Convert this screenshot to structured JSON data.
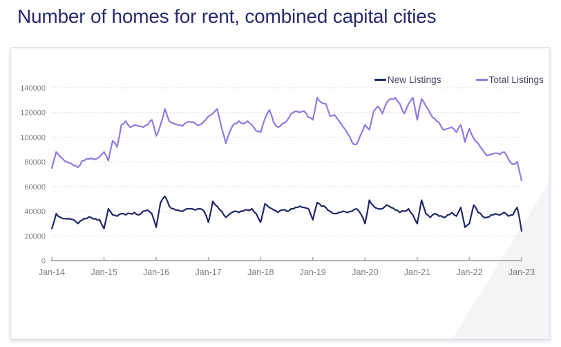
{
  "page": {
    "title": "Number of homes for rent, combined capital cities"
  },
  "colors": {
    "title": "#272b6d",
    "new_listings": "#222668",
    "total_listings": "#8a7ce0",
    "gridline": "#d9d9d9",
    "axis": "#a6a6a6",
    "tick_label": "#7d7d7d",
    "legend_text": "#42465c",
    "card_border": "#e4e5ec",
    "sheen": "#f4f4f7"
  },
  "chart_data": {
    "type": "line",
    "title": "Number of homes for rent, combined capital cities",
    "xlabel": "",
    "ylabel": "",
    "ylim": [
      0,
      140000
    ],
    "y_ticks": [
      0,
      20000,
      40000,
      60000,
      80000,
      100000,
      120000,
      140000
    ],
    "x_tick_labels": [
      "Jan-14",
      "Jan-15",
      "Jan-16",
      "Jan-17",
      "Jan-18",
      "Jan-19",
      "Jan-20",
      "Jan-21",
      "Jan-22",
      "Jan-23"
    ],
    "x_resolution": "monthly, Jan-14 through Jan-23",
    "grid": "horizontal dotted gridlines",
    "legend_position": "top-right",
    "series": [
      {
        "name": "New Listings",
        "color": "#222668",
        "monthly_values": [
          26000,
          38000,
          35000,
          34000,
          34000,
          33000,
          30000,
          33000,
          34000,
          35000,
          34000,
          33000,
          26000,
          42000,
          37000,
          36000,
          38000,
          37000,
          38000,
          39000,
          37000,
          40000,
          41000,
          38000,
          27000,
          47000,
          52000,
          44000,
          42000,
          41000,
          40000,
          42000,
          42000,
          41000,
          42000,
          40000,
          31000,
          48000,
          44000,
          40000,
          35000,
          38000,
          40000,
          39000,
          40000,
          41000,
          42000,
          38000,
          31000,
          46000,
          43000,
          41000,
          39000,
          41000,
          40000,
          42000,
          43000,
          44000,
          43000,
          42000,
          33000,
          47000,
          44000,
          43000,
          40000,
          38000,
          39000,
          40000,
          39000,
          40000,
          42000,
          38000,
          30000,
          49000,
          44000,
          42000,
          42000,
          45000,
          43000,
          41000,
          39000,
          40000,
          42000,
          37000,
          30000,
          49000,
          38000,
          35000,
          38000,
          36000,
          35000,
          37000,
          39000,
          36000,
          43000,
          27000,
          30000,
          45000,
          39000,
          36000,
          35000,
          37000,
          38000,
          37000,
          39000,
          36000,
          37000,
          43000,
          24000
        ]
      },
      {
        "name": "Total Listings",
        "color": "#8a7ce0",
        "monthly_values": [
          75000,
          88000,
          84000,
          80500,
          79000,
          77000,
          75500,
          81000,
          82500,
          83000,
          82000,
          84000,
          88000,
          81000,
          97000,
          92000,
          110000,
          113000,
          108000,
          110000,
          109000,
          108000,
          110000,
          114000,
          101000,
          110000,
          123000,
          113000,
          111000,
          110000,
          109000,
          112000,
          112000,
          111000,
          110000,
          113000,
          117000,
          119000,
          123000,
          108000,
          95000,
          105000,
          111000,
          113000,
          111000,
          113000,
          110000,
          105000,
          104000,
          115000,
          122000,
          112000,
          108000,
          111000,
          113000,
          119000,
          121000,
          120000,
          121000,
          116000,
          114000,
          132000,
          128000,
          127000,
          117000,
          118000,
          113000,
          108000,
          103000,
          96000,
          94000,
          102000,
          110000,
          106000,
          121000,
          125000,
          119000,
          128000,
          131000,
          132000,
          127000,
          119000,
          127000,
          132000,
          114000,
          131000,
          125000,
          119000,
          115000,
          112000,
          106000,
          107000,
          108000,
          104000,
          110000,
          96000,
          107000,
          99000,
          95000,
          90000,
          85000,
          86000,
          87000,
          86000,
          88000,
          82000,
          78000,
          80000,
          65000
        ]
      }
    ]
  }
}
